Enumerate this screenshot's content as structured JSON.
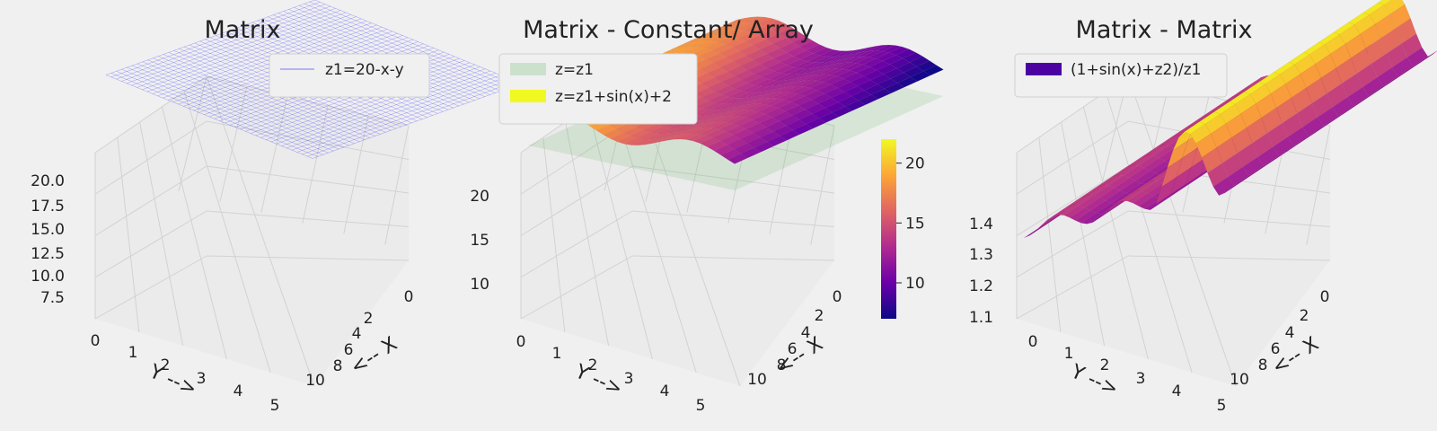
{
  "chart_data": [
    {
      "type": "surface3d",
      "title": "Matrix",
      "xlabel": "<-- X",
      "ylabel": "Y -->",
      "xticks": [
        "0",
        "2",
        "4",
        "6",
        "8",
        "10"
      ],
      "yticks": [
        "0",
        "1",
        "2",
        "3",
        "4",
        "5"
      ],
      "zticks": [
        "7.5",
        "10.0",
        "12.5",
        "15.0",
        "17.5",
        "20.0"
      ],
      "xlim": [
        0,
        10
      ],
      "ylim": [
        0,
        5
      ],
      "zlim": [
        5,
        20
      ],
      "series": [
        {
          "name": "z1=20-x-y",
          "style": "wireframe",
          "color": "#0000ff",
          "formula": "20-x-y",
          "z_range": [
            5,
            20
          ]
        }
      ],
      "legend": "top-right"
    },
    {
      "type": "surface3d",
      "title": "Matrix - Constant/ Array",
      "xlabel": "<-- X",
      "ylabel": "Y -->",
      "xticks": [
        "0",
        "2",
        "4",
        "6",
        "8",
        "10"
      ],
      "yticks": [
        "0",
        "1",
        "2",
        "3",
        "4",
        "5"
      ],
      "zticks": [
        "10",
        "15",
        "20"
      ],
      "colorbar_ticks": [
        "10",
        "15",
        "20"
      ],
      "colorbar_range": [
        7,
        22
      ],
      "colormap": [
        "#0d0887",
        "#6a00a8",
        "#b12a90",
        "#e16462",
        "#fca636",
        "#f0f921"
      ],
      "series": [
        {
          "name": "z=z1",
          "style": "surface",
          "color": "#2ca02c",
          "formula": "20-x-y",
          "z_range": [
            5,
            20
          ]
        },
        {
          "name": "z=z1+sin(x)+2",
          "style": "surface",
          "colormap": "plasma",
          "formula": "20-x-y+sin(x)+2",
          "z_range": [
            6,
            23
          ]
        }
      ],
      "legend": "top-left"
    },
    {
      "type": "surface3d",
      "title": "Matrix - Matrix",
      "xlabel": "<-- X",
      "ylabel": "Y -->",
      "xticks": [
        "0",
        "2",
        "4",
        "6",
        "8",
        "10"
      ],
      "yticks": [
        "0",
        "1",
        "2",
        "3",
        "4",
        "5"
      ],
      "zticks": [
        "1.1",
        "1.2",
        "1.3",
        "1.4"
      ],
      "series": [
        {
          "name": "(1+sin(x)+z2)/z1",
          "style": "surface",
          "colormap": "plasma",
          "formula": "(1+sin(x)+z2)/z1",
          "z_range": [
            1.1,
            1.42
          ]
        }
      ],
      "legend": "top-left"
    }
  ]
}
